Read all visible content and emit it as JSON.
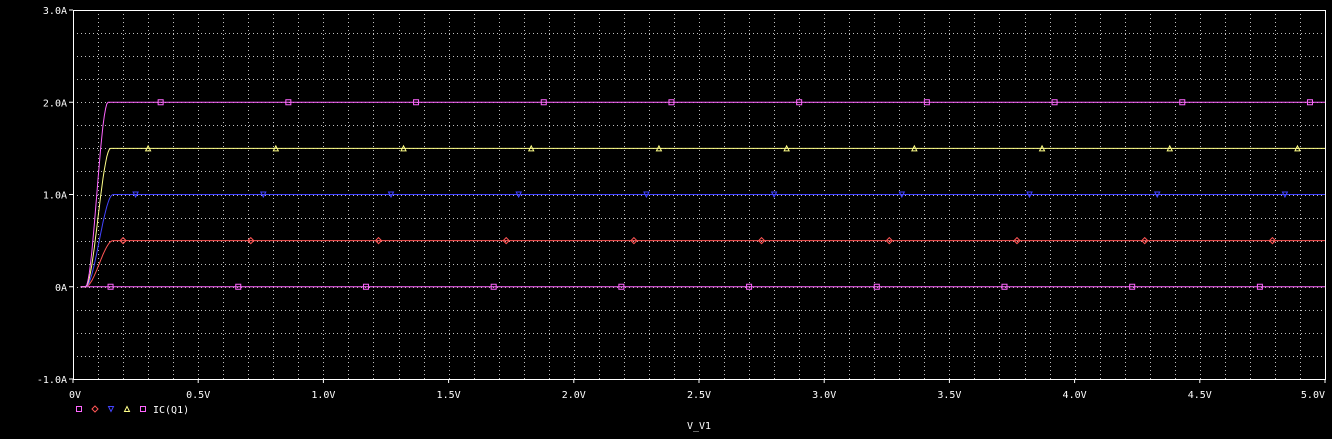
{
  "chart_data": {
    "type": "line",
    "xlabel": "V_V1",
    "ylabel": "",
    "xlim": [
      0,
      5.0
    ],
    "ylim": [
      -1.0,
      3.0
    ],
    "grid": true,
    "background": "#000000",
    "axis_color": "#ffffff",
    "grid_color": "#c0c0c0",
    "x_tick_labels": [
      "0V",
      "0.5V",
      "1.0V",
      "1.5V",
      "2.0V",
      "2.5V",
      "3.0V",
      "3.5V",
      "4.0V",
      "4.5V",
      "5.0V"
    ],
    "x_tick_values": [
      0,
      0.5,
      1.0,
      1.5,
      2.0,
      2.5,
      3.0,
      3.5,
      4.0,
      4.5,
      5.0
    ],
    "y_tick_labels": [
      "-1.0A",
      "0A",
      "1.0A",
      "2.0A",
      "3.0A"
    ],
    "y_tick_values": [
      -1.0,
      0,
      1.0,
      2.0,
      3.0
    ],
    "legend": {
      "placement": "bottom-left",
      "label": "IC(Q1)"
    },
    "series": [
      {
        "marker": "square",
        "color": "#ff66ff",
        "saturation": 0.0,
        "onset": 0.05,
        "rise": 0.1
      },
      {
        "marker": "diamond",
        "color": "#ff5555",
        "saturation": 0.5,
        "onset": 0.05,
        "rise": 0.11
      },
      {
        "marker": "triangle-down",
        "color": "#4444ff",
        "saturation": 1.0,
        "onset": 0.05,
        "rise": 0.11
      },
      {
        "marker": "triangle-up",
        "color": "#ffff88",
        "saturation": 1.5,
        "onset": 0.05,
        "rise": 0.1
      },
      {
        "marker": "square",
        "color": "#ff66ff",
        "saturation": 2.0,
        "onset": 0.05,
        "rise": 0.09
      }
    ]
  }
}
